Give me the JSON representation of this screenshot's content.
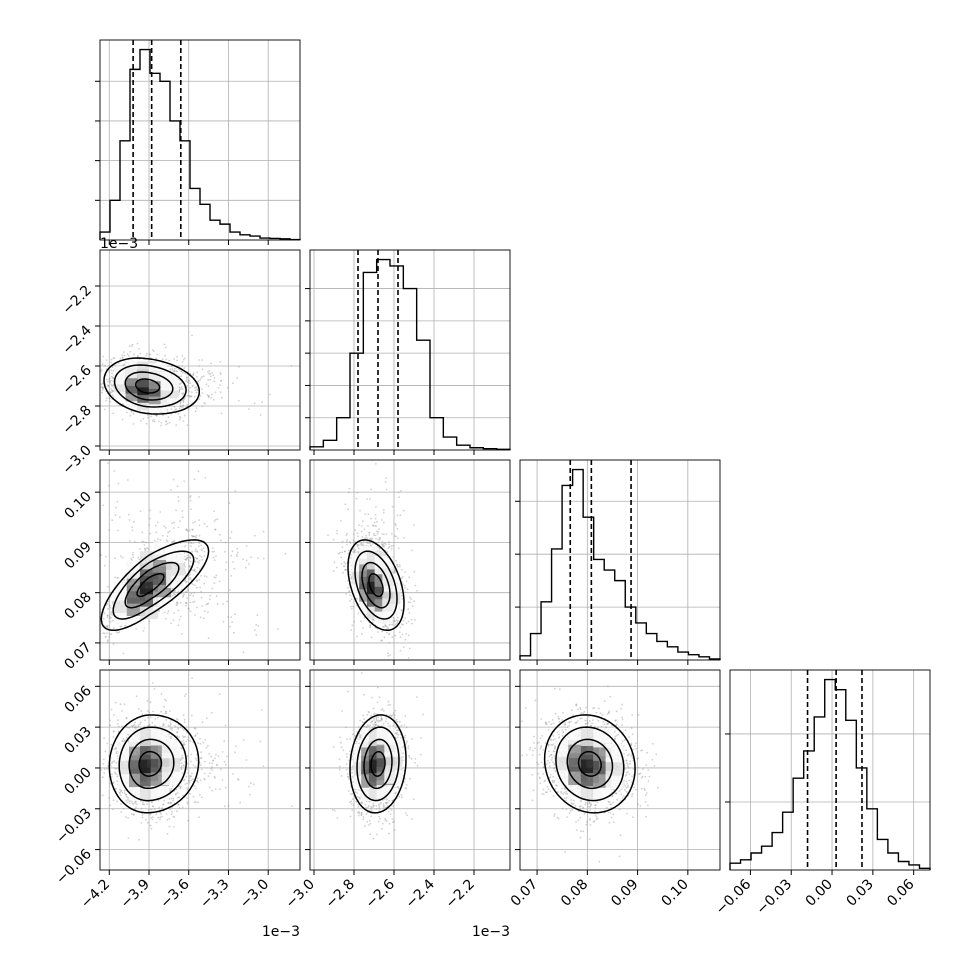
{
  "chart_data": {
    "type": "corner",
    "parameters": [
      {
        "tick_labels": [
          "−4.2",
          "−3.9",
          "−3.6",
          "−3.3",
          "−3.0"
        ],
        "ticks": [
          -4.2,
          -3.9,
          -3.6,
          -3.3,
          -3.0
        ],
        "range": [
          -4.27,
          -2.76
        ],
        "offset_label": "1e−3",
        "quantiles": [
          -4.02,
          -3.88,
          -3.66
        ],
        "hist": [
          0.02,
          0.1,
          0.25,
          0.43,
          0.48,
          0.42,
          0.4,
          0.3,
          0.25,
          0.13,
          0.09,
          0.05,
          0.04,
          0.02,
          0.013,
          0.01,
          0.005,
          0.004,
          0.003,
          0.001
        ]
      },
      {
        "tick_labels": [
          "−3.0",
          "−2.8",
          "−2.6",
          "−2.4",
          "−2.2"
        ],
        "ticks": [
          -3.0,
          -2.8,
          -2.6,
          -2.4,
          -2.2
        ],
        "range": [
          -3.02,
          -2.02
        ],
        "offset_label": "1e−3",
        "quantiles": [
          -2.78,
          -2.68,
          -2.58
        ],
        "hist": [
          0.01,
          0.03,
          0.1,
          0.3,
          0.55,
          0.59,
          0.57,
          0.5,
          0.34,
          0.1,
          0.04,
          0.015,
          0.007,
          0.004,
          0.002
        ]
      },
      {
        "tick_labels": [
          "0.07",
          "0.08",
          "0.09",
          "0.10"
        ],
        "ticks": [
          0.07,
          0.08,
          0.09,
          0.1
        ],
        "range": [
          0.0666,
          0.1064
        ],
        "offset_label": "",
        "quantiles": [
          0.0766,
          0.0808,
          0.0887
        ],
        "hist": [
          0.008,
          0.05,
          0.11,
          0.21,
          0.33,
          0.36,
          0.27,
          0.19,
          0.17,
          0.15,
          0.1,
          0.07,
          0.05,
          0.035,
          0.025,
          0.015,
          0.01,
          0.006,
          0.002
        ]
      },
      {
        "tick_labels": [
          "−0.06",
          "−0.03",
          "0.00",
          "0.03",
          "0.06"
        ],
        "ticks": [
          -0.06,
          -0.03,
          0.0,
          0.03,
          0.06
        ],
        "range": [
          -0.075,
          0.072
        ],
        "offset_label": "",
        "quantiles": [
          -0.018,
          0.003,
          0.022
        ],
        "hist": [
          0.02,
          0.03,
          0.05,
          0.07,
          0.11,
          0.17,
          0.27,
          0.35,
          0.45,
          0.56,
          0.53,
          0.44,
          0.3,
          0.18,
          0.09,
          0.05,
          0.025,
          0.015,
          0.005
        ]
      }
    ],
    "diagonal_yticks": {
      "0": [
        0.1,
        0.2,
        0.3,
        0.4
      ],
      "1": [
        0.1,
        0.2,
        0.3,
        0.4,
        0.5
      ],
      "2": [
        0.1,
        0.2,
        0.3
      ],
      "3": [
        0.2,
        0.4
      ]
    },
    "diagonal_ymax": {
      "0": 0.48,
      "1": 0.59,
      "2": 0.36,
      "3": 0.56
    },
    "pair_panels": [
      {
        "row": 1,
        "col": 0,
        "center": [
          -3.92,
          -2.7
        ],
        "spread": [
          0.16,
          0.07
        ],
        "rho": -0.2
      },
      {
        "row": 2,
        "col": 0,
        "center": [
          -3.9,
          0.0815
        ],
        "spread": [
          0.18,
          0.0045
        ],
        "rho": 0.75
      },
      {
        "row": 2,
        "col": 1,
        "center": [
          -2.69,
          0.0815
        ],
        "spread": [
          0.07,
          0.0045
        ],
        "rho": -0.4
      },
      {
        "row": 3,
        "col": 0,
        "center": [
          -3.9,
          0.003
        ],
        "spread": [
          0.15,
          0.018
        ],
        "rho": 0.05
      },
      {
        "row": 3,
        "col": 1,
        "center": [
          -2.68,
          0.003
        ],
        "spread": [
          0.07,
          0.018
        ],
        "rho": 0.1
      },
      {
        "row": 3,
        "col": 2,
        "center": [
          0.0805,
          0.003
        ],
        "spread": [
          0.0045,
          0.018
        ],
        "rho": -0.1
      }
    ],
    "grid": true,
    "colors": {
      "line": "#000000",
      "grid": "#b0b0b0",
      "points": "#9a9a9a"
    }
  }
}
